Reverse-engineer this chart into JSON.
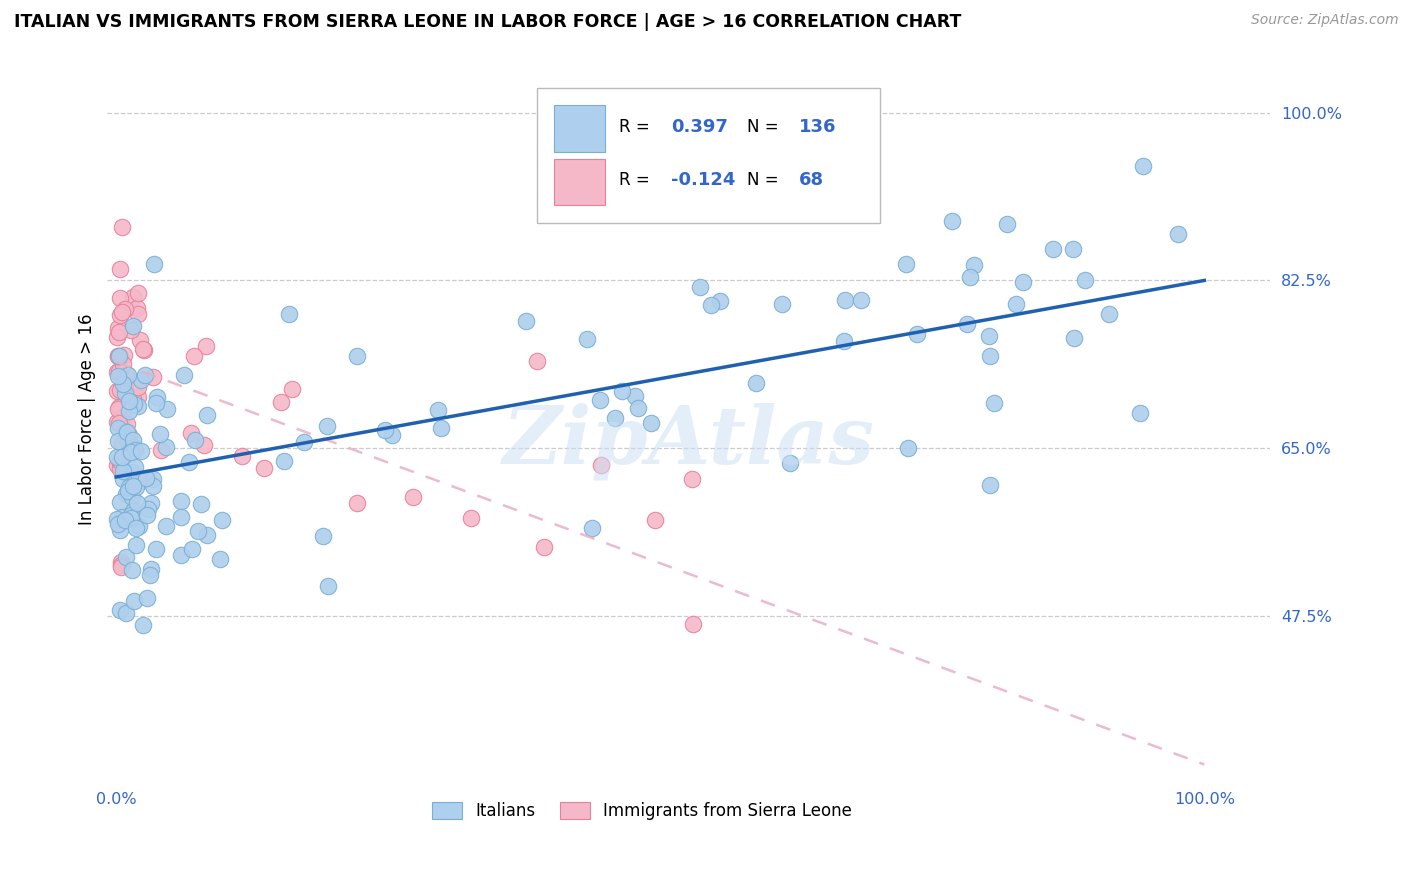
{
  "title": "ITALIAN VS IMMIGRANTS FROM SIERRA LEONE IN LABOR FORCE | AGE > 16 CORRELATION CHART",
  "source": "Source: ZipAtlas.com",
  "ylabel": "In Labor Force | Age > 16",
  "ytick_labels": [
    "47.5%",
    "65.0%",
    "82.5%",
    "100.0%"
  ],
  "ytick_values": [
    0.475,
    0.65,
    0.825,
    1.0
  ],
  "legend_r_italian": "0.397",
  "legend_n_italian": "136",
  "legend_r_sierra": "-0.124",
  "legend_n_sierra": "68",
  "italian_color": "#aecfed",
  "italian_edge_color": "#7aafd4",
  "sierra_color": "#f5b8c8",
  "sierra_edge_color": "#e8809a",
  "line_italian_color": "#2060b0",
  "line_sierra_color": "#e8b0c0",
  "watermark": "ZipAtlas",
  "label_color": "#3366cc",
  "italian_line_x0": 0.0,
  "italian_line_y0": 0.62,
  "italian_line_x1": 1.0,
  "italian_line_y1": 0.825,
  "sierra_line_x0": 0.0,
  "sierra_line_y0": 0.74,
  "sierra_line_x1": 1.0,
  "sierra_line_y1": 0.32,
  "ylim_low": 0.3,
  "ylim_high": 1.06,
  "xlim_low": -0.008,
  "xlim_high": 1.06
}
